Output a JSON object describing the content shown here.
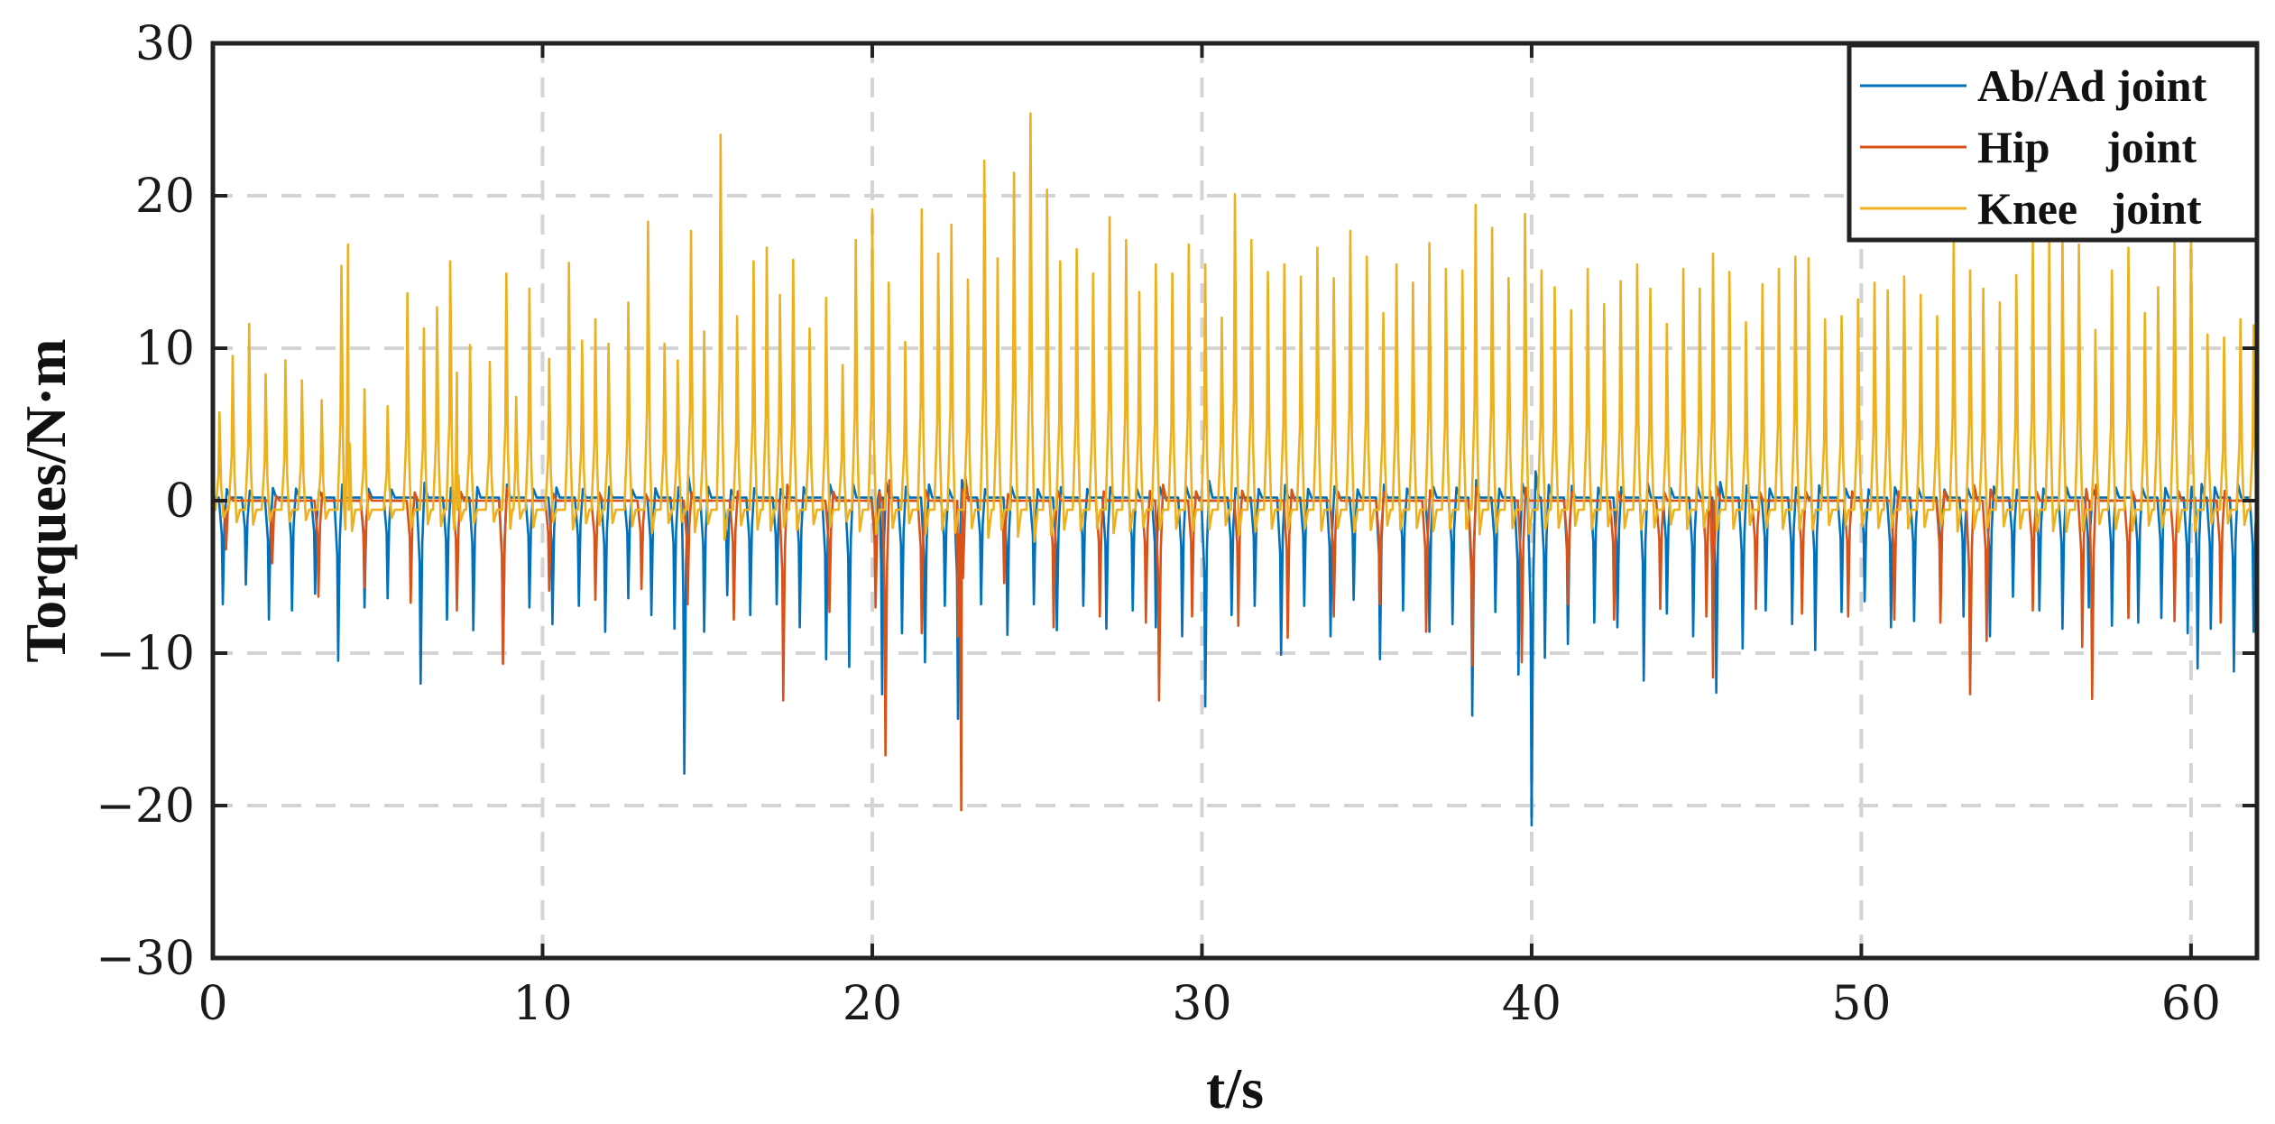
{
  "chart_data": {
    "type": "line",
    "title": "",
    "xlabel": "t/s",
    "ylabel": "Torques/N·m",
    "xlim": [
      0,
      62
    ],
    "ylim": [
      -30,
      30
    ],
    "xticks": [
      0,
      10,
      20,
      30,
      40,
      50,
      60
    ],
    "yticks": [
      -30,
      -20,
      -10,
      0,
      10,
      20,
      30
    ],
    "ytick_labels": [
      "−30",
      "−20",
      "−10",
      "0",
      "10",
      "20",
      "30"
    ],
    "grid": true,
    "legend_position": "top-right",
    "series": [
      {
        "name": "Ab/Ad joint",
        "color": "#0072BD",
        "baseline": 0.2,
        "x": [
          0.3,
          1.0,
          1.7,
          2.4,
          3.1,
          3.8,
          4.6,
          5.3,
          6.3,
          7.1,
          7.9,
          8.8,
          9.6,
          10.3,
          11.1,
          11.9,
          12.6,
          13.3,
          14.0,
          14.3,
          14.9,
          15.6,
          16.3,
          17.1,
          17.8,
          18.6,
          19.3,
          20.1,
          20.3,
          20.9,
          21.6,
          22.2,
          22.6,
          23.3,
          24.1,
          24.9,
          25.6,
          26.4,
          27.1,
          27.9,
          28.6,
          29.4,
          30.1,
          30.9,
          31.6,
          32.4,
          33.1,
          33.9,
          34.6,
          35.4,
          36.1,
          36.9,
          37.6,
          38.2,
          38.9,
          39.6,
          40.0,
          40.4,
          41.1,
          41.9,
          42.6,
          43.4,
          44.1,
          44.9,
          45.6,
          46.4,
          47.1,
          47.9,
          48.6,
          49.4,
          50.1,
          50.9,
          51.6,
          52.4,
          53.1,
          53.9,
          54.6,
          55.4,
          56.1,
          56.9,
          57.6,
          58.4,
          59.1,
          59.9,
          60.2,
          60.6,
          61.3,
          61.9
        ],
        "peaks": [
          -6.8,
          -5.5,
          -7.8,
          -7.2,
          -6.1,
          -10.5,
          -7.0,
          -6.4,
          -12.0,
          -7.8,
          -8.5,
          -10.6,
          -7.0,
          -8.1,
          -6.9,
          -8.6,
          -6.4,
          -7.5,
          -8.4,
          -17.9,
          -8.6,
          -6.2,
          -7.5,
          -6.8,
          -8.3,
          -10.4,
          -10.9,
          -5.9,
          -12.7,
          -8.7,
          -10.6,
          -6.9,
          -14.3,
          -6.8,
          -8.8,
          -6.8,
          -8.5,
          -6.9,
          -8.4,
          -7.2,
          -8.3,
          -8.9,
          -13.5,
          -7.5,
          -6.9,
          -10.1,
          -6.9,
          -8.9,
          -6.5,
          -10.4,
          -7.2,
          -8.6,
          -8.1,
          -14.1,
          -7.3,
          -11.4,
          -21.3,
          -10.3,
          -9.4,
          -8.0,
          -8.3,
          -11.8,
          -7.4,
          -8.9,
          -12.6,
          -9.7,
          -7.2,
          -8.1,
          -9.8,
          -7.3,
          -6.6,
          -8.3,
          -7.9,
          -6.4,
          -7.6,
          -8.9,
          -6.3,
          -7.2,
          -8.4,
          -7.0,
          -8.2,
          -8.0,
          -7.7,
          -8.7,
          -11.0,
          -8.4,
          -11.2,
          -8.6
        ]
      },
      {
        "name": "Hip     joint",
        "color": "#D95319",
        "baseline": 0.0,
        "x": [
          0.4,
          1.8,
          3.2,
          4.6,
          6.0,
          7.4,
          8.8,
          10.2,
          11.6,
          13.0,
          14.4,
          15.8,
          17.3,
          18.7,
          20.1,
          20.4,
          21.5,
          22.6,
          22.7,
          24.0,
          25.5,
          26.9,
          28.3,
          28.7,
          29.7,
          31.1,
          32.6,
          34.0,
          35.4,
          36.8,
          38.2,
          39.7,
          41.1,
          42.5,
          43.9,
          45.3,
          45.5,
          46.8,
          48.2,
          49.6,
          51.0,
          52.4,
          53.3,
          53.8,
          55.2,
          56.7,
          57.0,
          58.1,
          59.5,
          60.9
        ],
        "peaks": [
          -3.2,
          -4.1,
          -6.3,
          -5.7,
          -6.7,
          -7.2,
          -10.7,
          -5.9,
          -6.5,
          -5.8,
          -6.8,
          -7.8,
          -13.1,
          -7.3,
          -7.0,
          -16.7,
          -8.7,
          -8.9,
          -20.3,
          -5.4,
          -8.3,
          -7.6,
          -8.0,
          -13.1,
          -7.6,
          -8.2,
          -9.0,
          -7.6,
          -6.8,
          -8.6,
          -10.8,
          -10.6,
          -6.8,
          -7.8,
          -7.1,
          -7.6,
          -11.6,
          -7.1,
          -7.4,
          -7.6,
          -7.8,
          -8.0,
          -12.7,
          -9.2,
          -7.2,
          -9.6,
          -13.0,
          -7.7,
          -7.9,
          -8.0
        ]
      },
      {
        "name": "Knee   joint",
        "color": "#EDB120",
        "baseline": -0.6,
        "x": [
          0.2,
          0.6,
          1.1,
          1.6,
          2.2,
          2.7,
          3.3,
          3.9,
          4.1,
          4.6,
          5.3,
          5.9,
          6.4,
          6.8,
          7.2,
          7.4,
          7.8,
          8.4,
          8.9,
          9.2,
          9.6,
          10.2,
          10.8,
          11.2,
          11.6,
          12.0,
          12.6,
          13.2,
          13.7,
          14.1,
          14.5,
          14.9,
          15.4,
          15.9,
          16.4,
          16.8,
          17.2,
          17.6,
          18.1,
          18.6,
          19.1,
          19.5,
          20.0,
          20.5,
          21.0,
          21.5,
          22.0,
          22.4,
          22.9,
          23.4,
          23.8,
          24.3,
          24.8,
          25.3,
          25.7,
          26.2,
          26.7,
          27.2,
          27.7,
          28.1,
          28.6,
          29.1,
          29.6,
          30.1,
          30.6,
          31.0,
          31.5,
          32.0,
          32.5,
          33.0,
          33.5,
          34.0,
          34.5,
          35.0,
          35.5,
          35.9,
          36.4,
          36.9,
          37.4,
          37.9,
          38.3,
          38.8,
          39.3,
          39.8,
          40.3,
          40.7,
          41.2,
          41.7,
          42.2,
          42.7,
          43.2,
          43.6,
          44.1,
          44.6,
          45.1,
          45.5,
          46.0,
          46.5,
          47.0,
          47.5,
          48.0,
          48.4,
          48.9,
          49.4,
          49.9,
          50.4,
          50.8,
          51.3,
          51.8,
          52.3,
          52.8,
          53.3,
          53.7,
          54.2,
          54.7,
          55.2,
          55.7,
          56.1,
          56.6,
          57.1,
          57.6,
          58.1,
          58.6,
          59.0,
          59.5,
          60.0,
          60.5,
          61.0,
          61.5,
          61.9
        ],
        "peaks": [
          5.8,
          9.5,
          11.6,
          8.3,
          9.2,
          7.9,
          6.6,
          15.4,
          16.8,
          7.3,
          6.2,
          13.6,
          11.3,
          12.7,
          15.7,
          8.4,
          10.2,
          9.1,
          14.9,
          6.8,
          13.9,
          9.3,
          15.6,
          10.5,
          11.9,
          10.3,
          13.0,
          18.3,
          10.3,
          9.2,
          17.7,
          11.1,
          24.0,
          12.1,
          15.7,
          16.6,
          13.5,
          15.8,
          11.3,
          13.3,
          8.9,
          17.1,
          19.1,
          14.3,
          10.4,
          19.1,
          16.2,
          18.1,
          14.5,
          22.3,
          15.9,
          21.5,
          25.4,
          20.4,
          15.7,
          16.5,
          14.9,
          18.6,
          17.1,
          13.7,
          15.5,
          14.9,
          16.8,
          15.5,
          12.0,
          20.1,
          17.1,
          15.0,
          15.5,
          14.7,
          16.6,
          14.6,
          17.7,
          16.0,
          12.3,
          15.5,
          14.3,
          16.9,
          15.2,
          15.1,
          19.4,
          17.9,
          14.6,
          18.8,
          15.1,
          14.0,
          12.5,
          15.2,
          12.9,
          14.4,
          15.5,
          13.9,
          11.6,
          15.2,
          13.9,
          16.2,
          15.0,
          11.7,
          14.2,
          15.2,
          16.0,
          15.9,
          11.9,
          12.1,
          13.2,
          14.3,
          13.8,
          14.7,
          13.5,
          12.1,
          17.2,
          15.1,
          13.9,
          13.0,
          14.8,
          17.0,
          16.9,
          17.4,
          16.8,
          11.2,
          15.1,
          16.6,
          12.3,
          14.0,
          17.6,
          17.3,
          10.9,
          10.7,
          11.9,
          11.5
        ]
      }
    ]
  }
}
